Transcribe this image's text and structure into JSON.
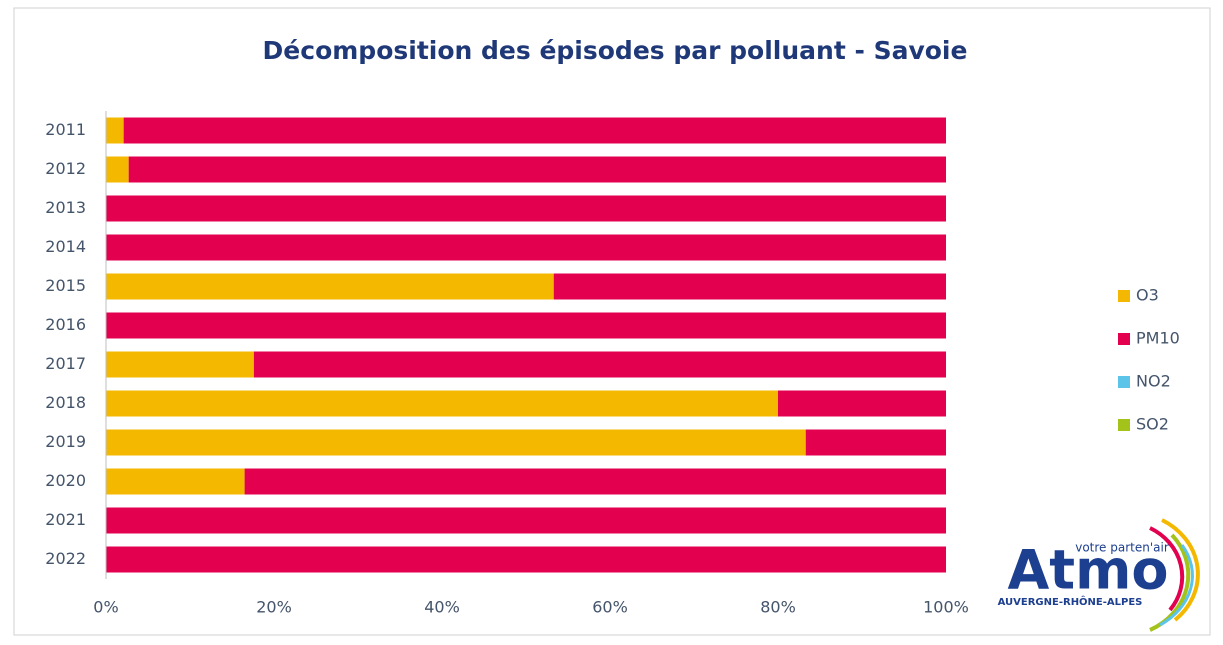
{
  "chart_data": {
    "type": "stacked_bar_horizontal",
    "title": "Décomposition des épisodes par polluant - Savoie",
    "categories": [
      "2011",
      "2012",
      "2013",
      "2014",
      "2015",
      "2016",
      "2017",
      "2018",
      "2019",
      "2020",
      "2021",
      "2022"
    ],
    "series": [
      {
        "name": "O3",
        "color": "#f5b800",
        "values": [
          2.1,
          2.7,
          0,
          0,
          53.3,
          0,
          17.6,
          80,
          83.3,
          16.5,
          0,
          0
        ]
      },
      {
        "name": "PM10",
        "color": "#e2004f",
        "values": [
          97.9,
          97.3,
          100,
          100,
          46.7,
          100,
          82.4,
          20,
          16.7,
          83.5,
          100,
          100
        ]
      },
      {
        "name": "NO2",
        "color": "#5bc4e8",
        "values": [
          0,
          0,
          0,
          0,
          0,
          0,
          0,
          0,
          0,
          0,
          0,
          0
        ]
      },
      {
        "name": "SO2",
        "color": "#a4c31a",
        "values": [
          0,
          0,
          0,
          0,
          0,
          0,
          0,
          0,
          0,
          0,
          0,
          0
        ]
      }
    ],
    "xlim": [
      0,
      100
    ],
    "xticks": [
      {
        "value": 0,
        "label": "0%"
      },
      {
        "value": 20,
        "label": "20%"
      },
      {
        "value": 40,
        "label": "40%"
      },
      {
        "value": 60,
        "label": "60%"
      },
      {
        "value": 80,
        "label": "80%"
      },
      {
        "value": 100,
        "label": "100%"
      }
    ],
    "legend": "right",
    "logo": {
      "tagline": "votre parten'air",
      "name": "Atmo",
      "region": "AUVERGNE-RHÔNE-ALPES"
    }
  }
}
